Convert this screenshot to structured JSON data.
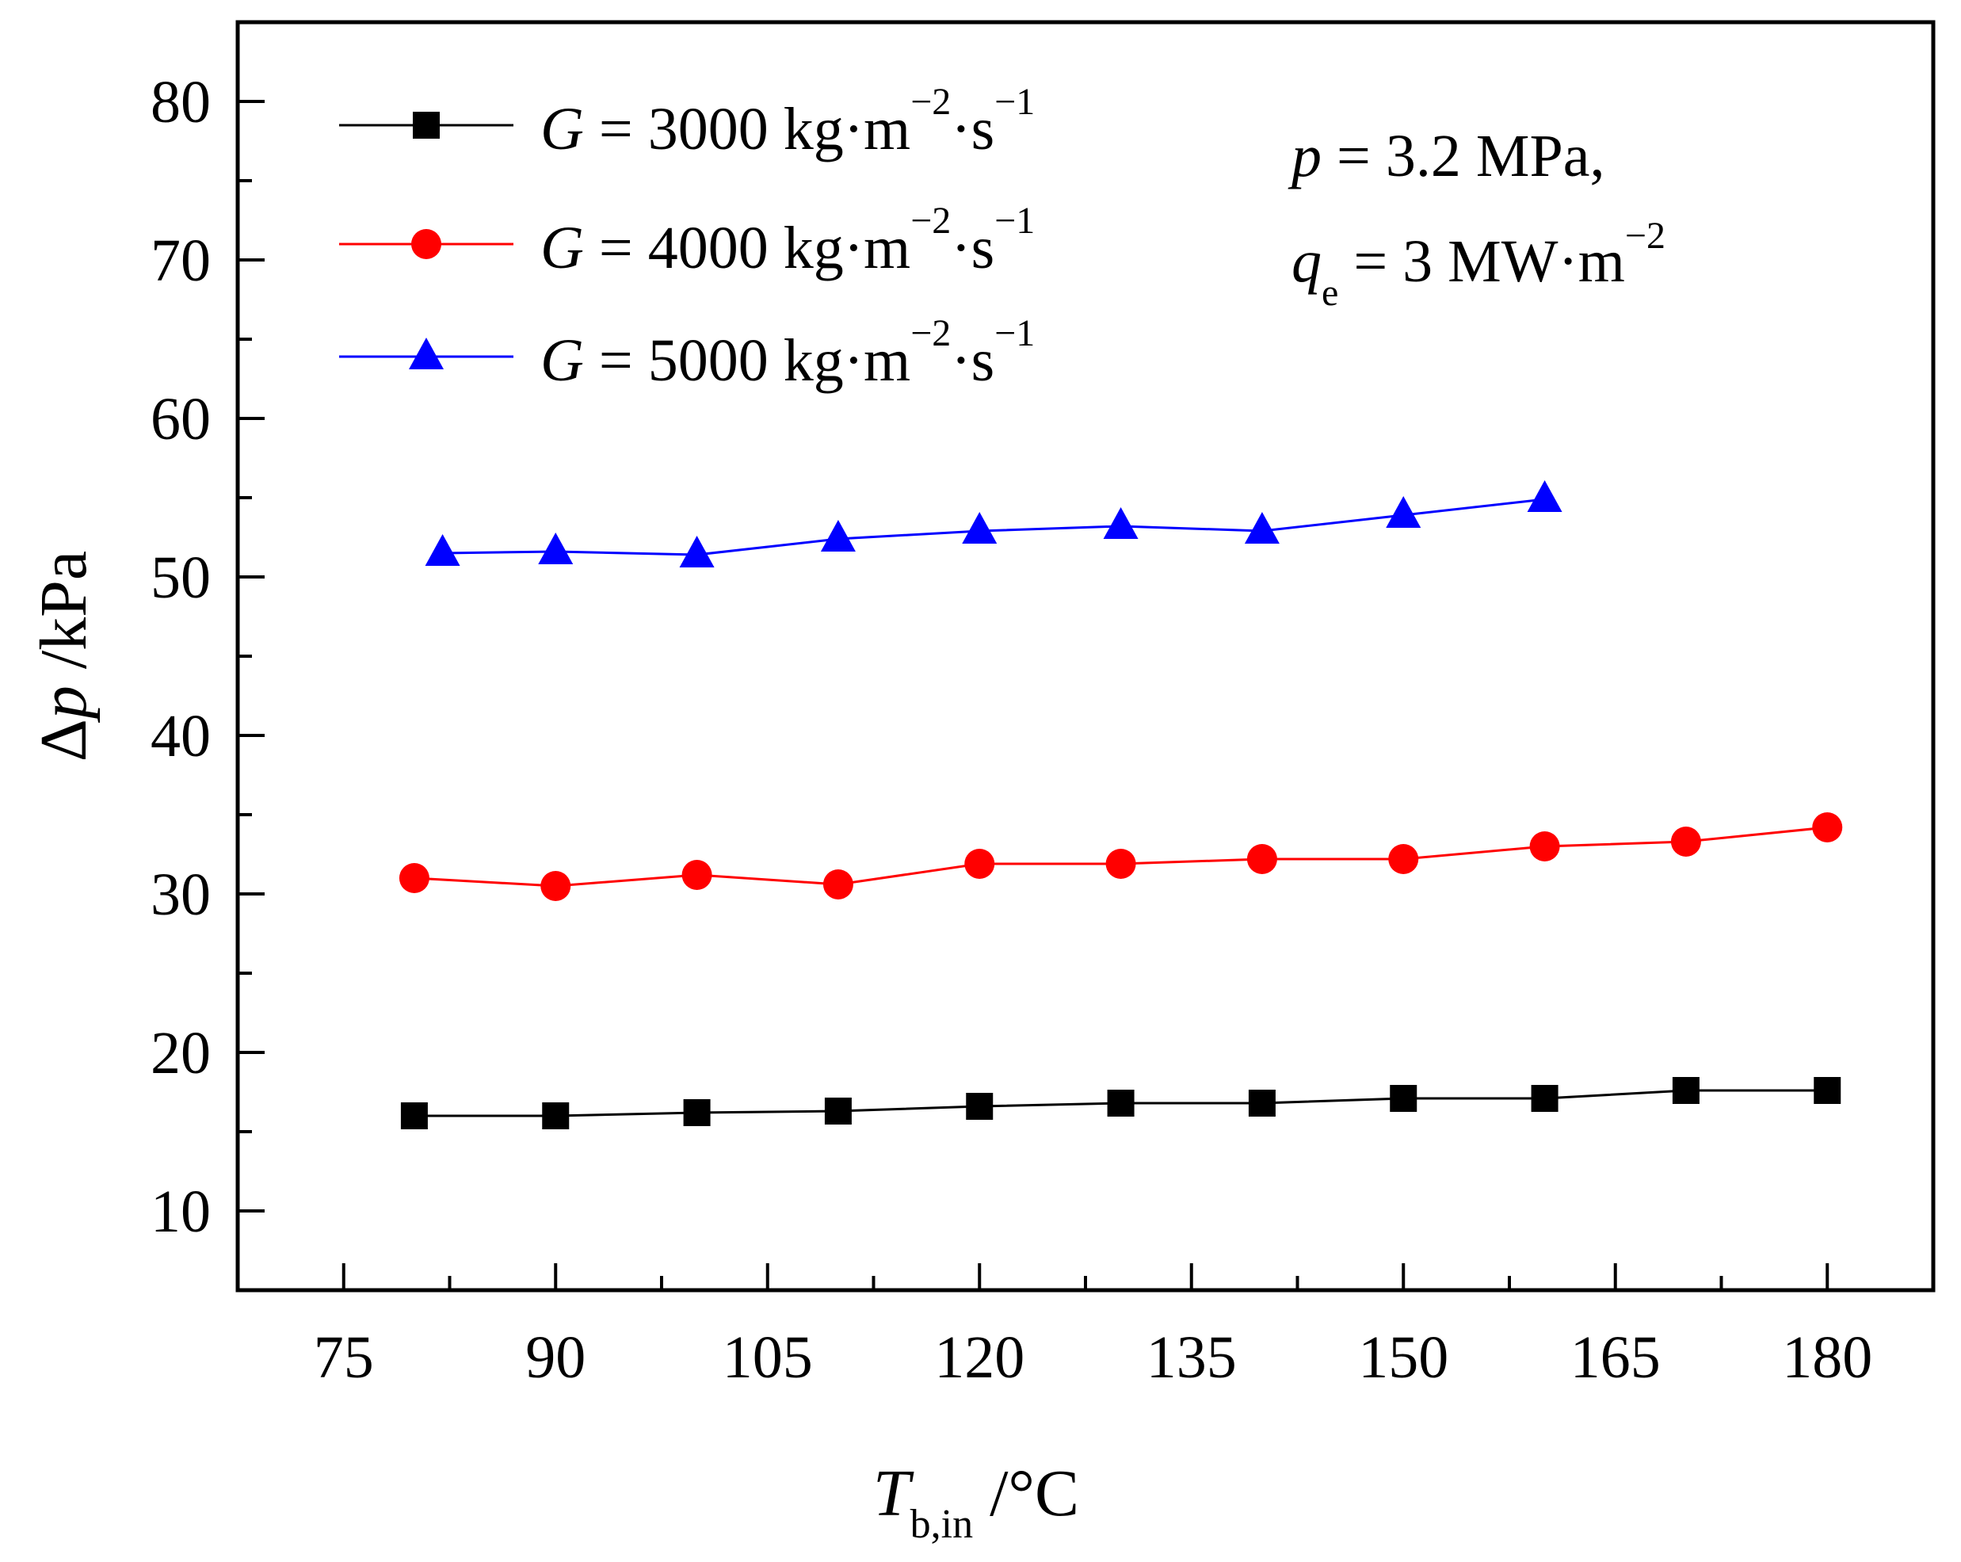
{
  "chart_data": {
    "type": "line",
    "xlabel": {
      "main": "T",
      "sub": "b,in",
      "unit": " /°C"
    },
    "ylabel": {
      "delta": "Δ",
      "var": "p",
      "unit": " /kPa"
    },
    "xlim": [
      67.5,
      187.5
    ],
    "ylim": [
      5,
      85
    ],
    "x_ticks": [
      75,
      90,
      105,
      120,
      135,
      150,
      165,
      180
    ],
    "x_tick_labels": [
      "75",
      "90",
      "105",
      "120",
      "135",
      "150",
      "165",
      "180"
    ],
    "y_ticks": [
      10,
      20,
      30,
      40,
      50,
      60,
      70,
      80
    ],
    "y_tick_labels": [
      "10",
      "20",
      "30",
      "40",
      "50",
      "60",
      "70",
      "80"
    ],
    "annotation": {
      "line1_var": "p",
      "line1_rest": " = 3.2 MPa,",
      "line2_var": "q",
      "line2_sub": "e",
      "line2_rest": " = 3 MW·m",
      "line2_sup": "−2"
    },
    "series": [
      {
        "name": "G = 3000 kg·m−2·s−1",
        "label_var": "G",
        "label_value": " = 3000 kg·m",
        "label_sup1": "−2",
        "label_mid": "·s",
        "label_sup2": "−1",
        "color": "#000000",
        "marker": "square",
        "x": [
          80,
          90,
          100,
          110,
          120,
          130,
          140,
          150,
          160,
          170,
          180
        ],
        "y": [
          16.0,
          16.0,
          16.2,
          16.3,
          16.6,
          16.8,
          16.8,
          17.1,
          17.1,
          17.6,
          17.6
        ]
      },
      {
        "name": "G = 4000 kg·m−2·s−1",
        "label_var": "G",
        "label_value": " = 4000 kg·m",
        "label_sup1": "−2",
        "label_mid": "·s",
        "label_sup2": "−1",
        "color": "#ff0000",
        "marker": "circle",
        "x": [
          80,
          90,
          100,
          110,
          120,
          130,
          140,
          150,
          160,
          170,
          180
        ],
        "y": [
          31.0,
          30.5,
          31.2,
          30.6,
          31.9,
          31.9,
          32.2,
          32.2,
          33.0,
          33.3,
          34.2
        ]
      },
      {
        "name": "G = 5000 kg·m−2·s−1",
        "label_var": "G",
        "label_value": " = 5000 kg·m",
        "label_sup1": "−2",
        "label_mid": "·s",
        "label_sup2": "−1",
        "color": "#0000ff",
        "marker": "triangle",
        "x": [
          82,
          90,
          100,
          110,
          120,
          130,
          140,
          150,
          160
        ],
        "y": [
          51.5,
          51.6,
          51.4,
          52.4,
          52.9,
          53.2,
          52.9,
          53.9,
          54.9
        ]
      }
    ]
  }
}
